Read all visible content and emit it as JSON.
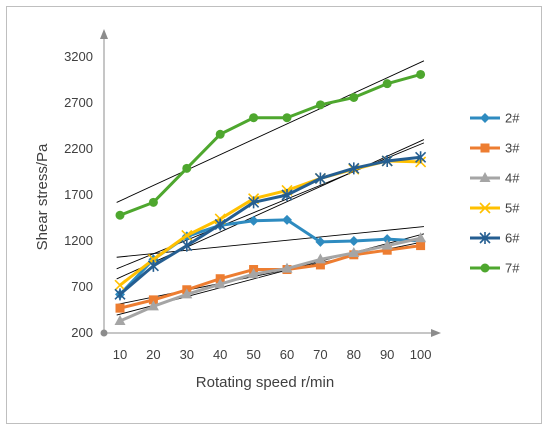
{
  "chart_data": {
    "type": "line",
    "title": "",
    "xlabel": "Rotating speed r/min",
    "ylabel": "Shear stress/Pa",
    "x": [
      10,
      20,
      30,
      40,
      50,
      60,
      70,
      80,
      90,
      100
    ],
    "x_tick_labels": [
      "10",
      "20",
      "30",
      "40",
      "50",
      "60",
      "70",
      "80",
      "90",
      "100"
    ],
    "ylim": [
      200,
      3200
    ],
    "yticks": [
      200,
      700,
      1200,
      1700,
      2200,
      2700,
      3200
    ],
    "y_tick_labels": [
      "200",
      "700",
      "1200",
      "1700",
      "2200",
      "2700",
      "3200"
    ],
    "grid": false,
    "legend_position": "right",
    "trendlines": true,
    "series": [
      {
        "name": "2#",
        "color": "#2E8BC0",
        "marker": "diamond",
        "values": [
          620,
          1000,
          1250,
          1370,
          1420,
          1430,
          1190,
          1200,
          1220,
          1200
        ]
      },
      {
        "name": "3#",
        "color": "#ED7D31",
        "marker": "square",
        "values": [
          470,
          560,
          670,
          790,
          890,
          890,
          940,
          1050,
          1100,
          1150
        ]
      },
      {
        "name": "4#",
        "color": "#A5A5A5",
        "marker": "triangle",
        "values": [
          330,
          490,
          620,
          730,
          840,
          900,
          1000,
          1070,
          1150,
          1230
        ]
      },
      {
        "name": "5#",
        "color": "#FFC000",
        "marker": "x",
        "values": [
          720,
          1000,
          1260,
          1440,
          1660,
          1750,
          1880,
          1980,
          2070,
          2060
        ]
      },
      {
        "name": "6#",
        "color": "#255E91",
        "marker": "star",
        "values": [
          620,
          930,
          1150,
          1380,
          1620,
          1700,
          1880,
          1990,
          2070,
          2110
        ]
      },
      {
        "name": "7#",
        "color": "#4EA72E",
        "marker": "circle",
        "values": [
          1480,
          1620,
          1990,
          2360,
          2540,
          2540,
          2680,
          2760,
          2910,
          3010
        ]
      }
    ]
  }
}
